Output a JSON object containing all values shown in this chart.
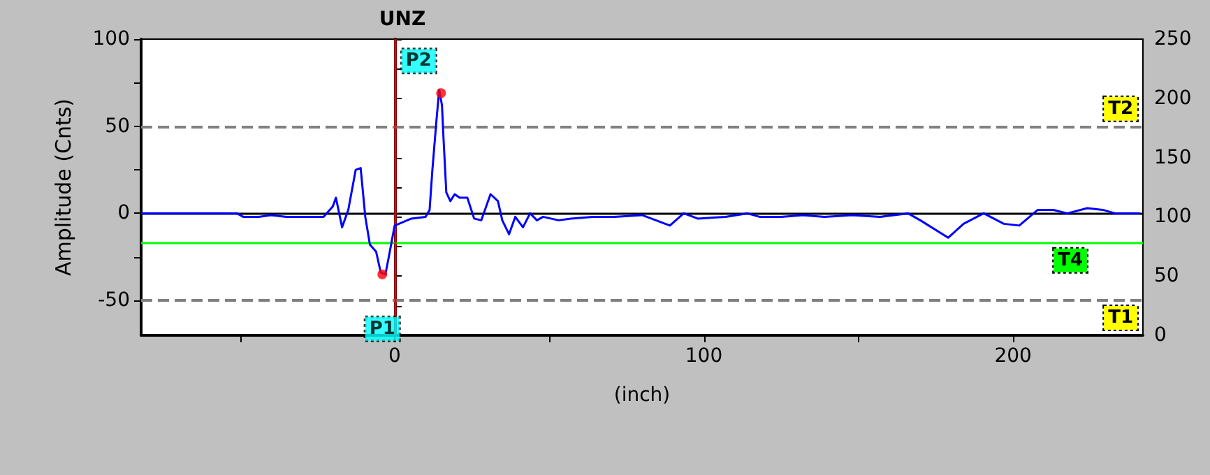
{
  "chart_data": {
    "type": "line",
    "title": "UNZ",
    "xlabel": "(inch)",
    "ylabel": "Amplitude (Cnts)",
    "x": [
      -82,
      -58,
      -51,
      -49,
      -44,
      -40,
      -35,
      -23,
      -20,
      -19,
      -17,
      -15,
      -12.6,
      -11,
      -9.5,
      -8,
      -6,
      -4.5,
      -3,
      -2,
      0,
      1.4,
      5.4,
      10,
      11.3,
      12.2,
      13.5,
      14.4,
      15.3,
      15.8,
      16.7,
      18,
      19.4,
      21,
      23.5,
      25.7,
      28,
      31,
      33.4,
      34.8,
      37,
      39,
      41.5,
      43.8,
      46,
      48,
      53,
      57,
      64,
      71,
      80,
      89,
      93.5,
      98,
      107,
      114,
      118,
      125,
      132,
      139,
      148,
      157,
      166,
      170,
      179,
      184,
      190.5,
      197,
      202,
      208,
      213,
      217.6,
      224,
      229,
      233,
      241
    ],
    "series": [
      {
        "color": "#0000ff",
        "values": [
          0,
          0,
          0,
          -2,
          -2,
          -1,
          -2,
          -2,
          4,
          9,
          -8,
          2,
          25,
          26,
          -2,
          -18,
          -22,
          -34,
          -35,
          -26,
          -7,
          -6,
          -3,
          -2,
          2,
          25,
          53,
          71,
          62,
          43,
          12,
          7,
          11,
          9,
          9,
          -3,
          -4,
          11,
          7,
          -4,
          -12,
          -2,
          -8,
          0,
          -4,
          -2,
          -4,
          -3,
          -2,
          -2,
          -1,
          -7,
          0,
          -3,
          -2,
          0,
          -2,
          -2,
          -1,
          -2,
          -1,
          -2,
          0,
          -4,
          -14,
          -6,
          0,
          -6,
          -7,
          2,
          2,
          0,
          3,
          2,
          0,
          0
        ]
      }
    ],
    "xlim": [
      -82,
      242
    ],
    "xticks": [
      {
        "value": -50,
        "label": null
      },
      0,
      {
        "value": 50,
        "label": null
      },
      100,
      {
        "value": 150,
        "label": null
      },
      200
    ],
    "ylim": [
      -70,
      100
    ],
    "yticks": [
      -50,
      {
        "value": -25,
        "label": null
      },
      0,
      {
        "value": 25,
        "label": null
      },
      50,
      {
        "value": 75,
        "label": null
      },
      100
    ],
    "y2lim": [
      0,
      250
    ],
    "y2ticks": [
      0,
      {
        "value": 25,
        "label": null
      },
      50,
      {
        "value": 75,
        "label": null
      },
      100,
      {
        "value": 125,
        "label": null
      },
      150,
      {
        "value": 175,
        "label": null
      },
      200,
      {
        "value": 225,
        "label": null
      },
      250
    ],
    "ref_lines": [
      {
        "axis": "y",
        "value": 50,
        "label": "T2",
        "color": "#808080",
        "line_style": "dashed"
      },
      {
        "axis": "y",
        "value": -50,
        "label": "T1",
        "color": "#808080",
        "line_style": "dashed"
      },
      {
        "axis": "y",
        "value": -17,
        "label": "T4",
        "color": "#00ff00",
        "line_style": "solid"
      },
      {
        "axis": "y",
        "value": 0,
        "label": null,
        "color": "#000000",
        "line_style": "solid"
      },
      {
        "axis": "x",
        "value": 0,
        "label": null,
        "color": "#ff0000",
        "line_style": "solid"
      }
    ],
    "annotations": [
      {
        "text": "P1",
        "x": -4,
        "y": -35
      },
      {
        "text": "P2",
        "x": 15,
        "y": 69
      }
    ],
    "marker": "none",
    "line_style": "solid"
  }
}
